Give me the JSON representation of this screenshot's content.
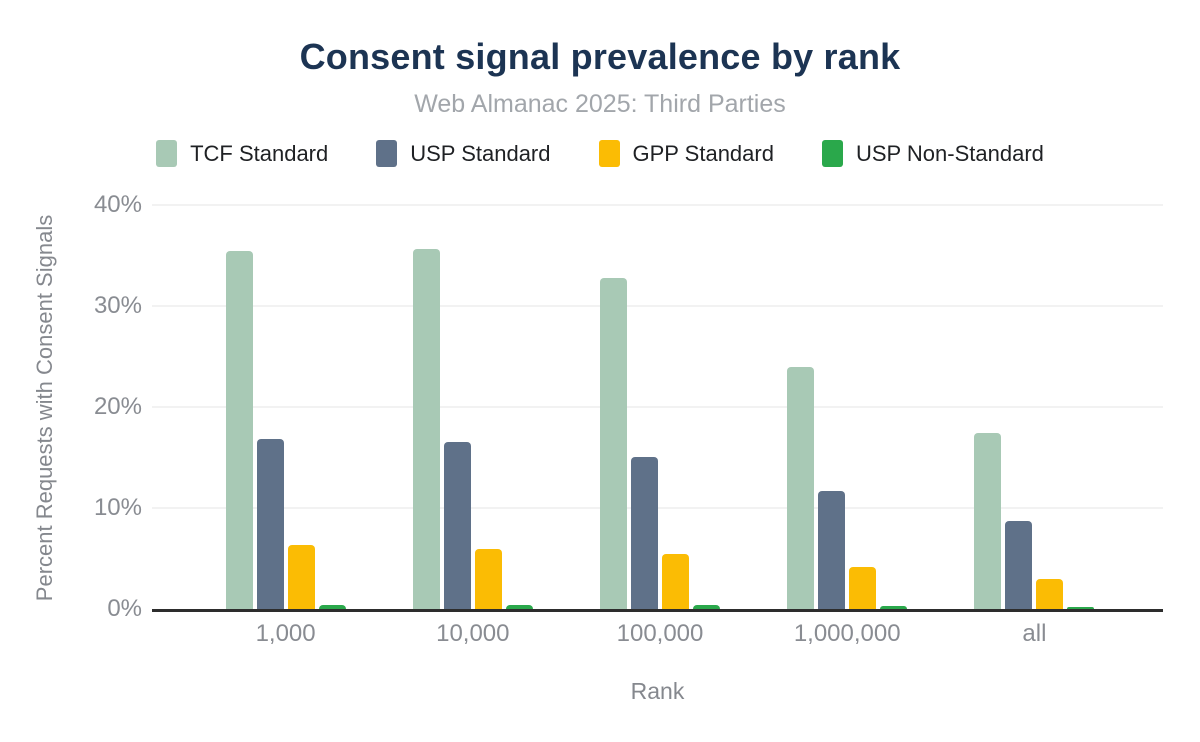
{
  "chart_data": {
    "type": "bar",
    "title": "Consent signal prevalence by rank",
    "subtitle": "Web Almanac 2025: Third Parties",
    "xlabel": "Rank",
    "ylabel": "Percent Requests with Consent Signals",
    "categories": [
      "1,000",
      "10,000",
      "100,000",
      "1,000,000",
      "all"
    ],
    "series": [
      {
        "name": "TCF Standard",
        "color": "#a8c9b5",
        "values": [
          35.4,
          35.6,
          32.8,
          24.0,
          17.4
        ]
      },
      {
        "name": "USP Standard",
        "color": "#5f7189",
        "values": [
          16.8,
          16.5,
          15.1,
          11.7,
          8.7
        ]
      },
      {
        "name": "GPP Standard",
        "color": "#fbbc04",
        "values": [
          6.3,
          5.9,
          5.4,
          4.2,
          3.0
        ]
      },
      {
        "name": "USP Non-Standard",
        "color": "#2aa84b",
        "values": [
          0.4,
          0.4,
          0.4,
          0.3,
          0.2
        ]
      }
    ],
    "ylim": [
      0,
      40
    ],
    "yticks": [
      "0%",
      "10%",
      "20%",
      "30%",
      "40%"
    ],
    "grid": true,
    "legend_position": "top",
    "colors": {
      "title": "#1c3453",
      "subtitle": "#a2a6ab",
      "axis_text": "#898c92",
      "axis_line": "#2d2d2d",
      "gridline": "#f2f2f2"
    }
  }
}
